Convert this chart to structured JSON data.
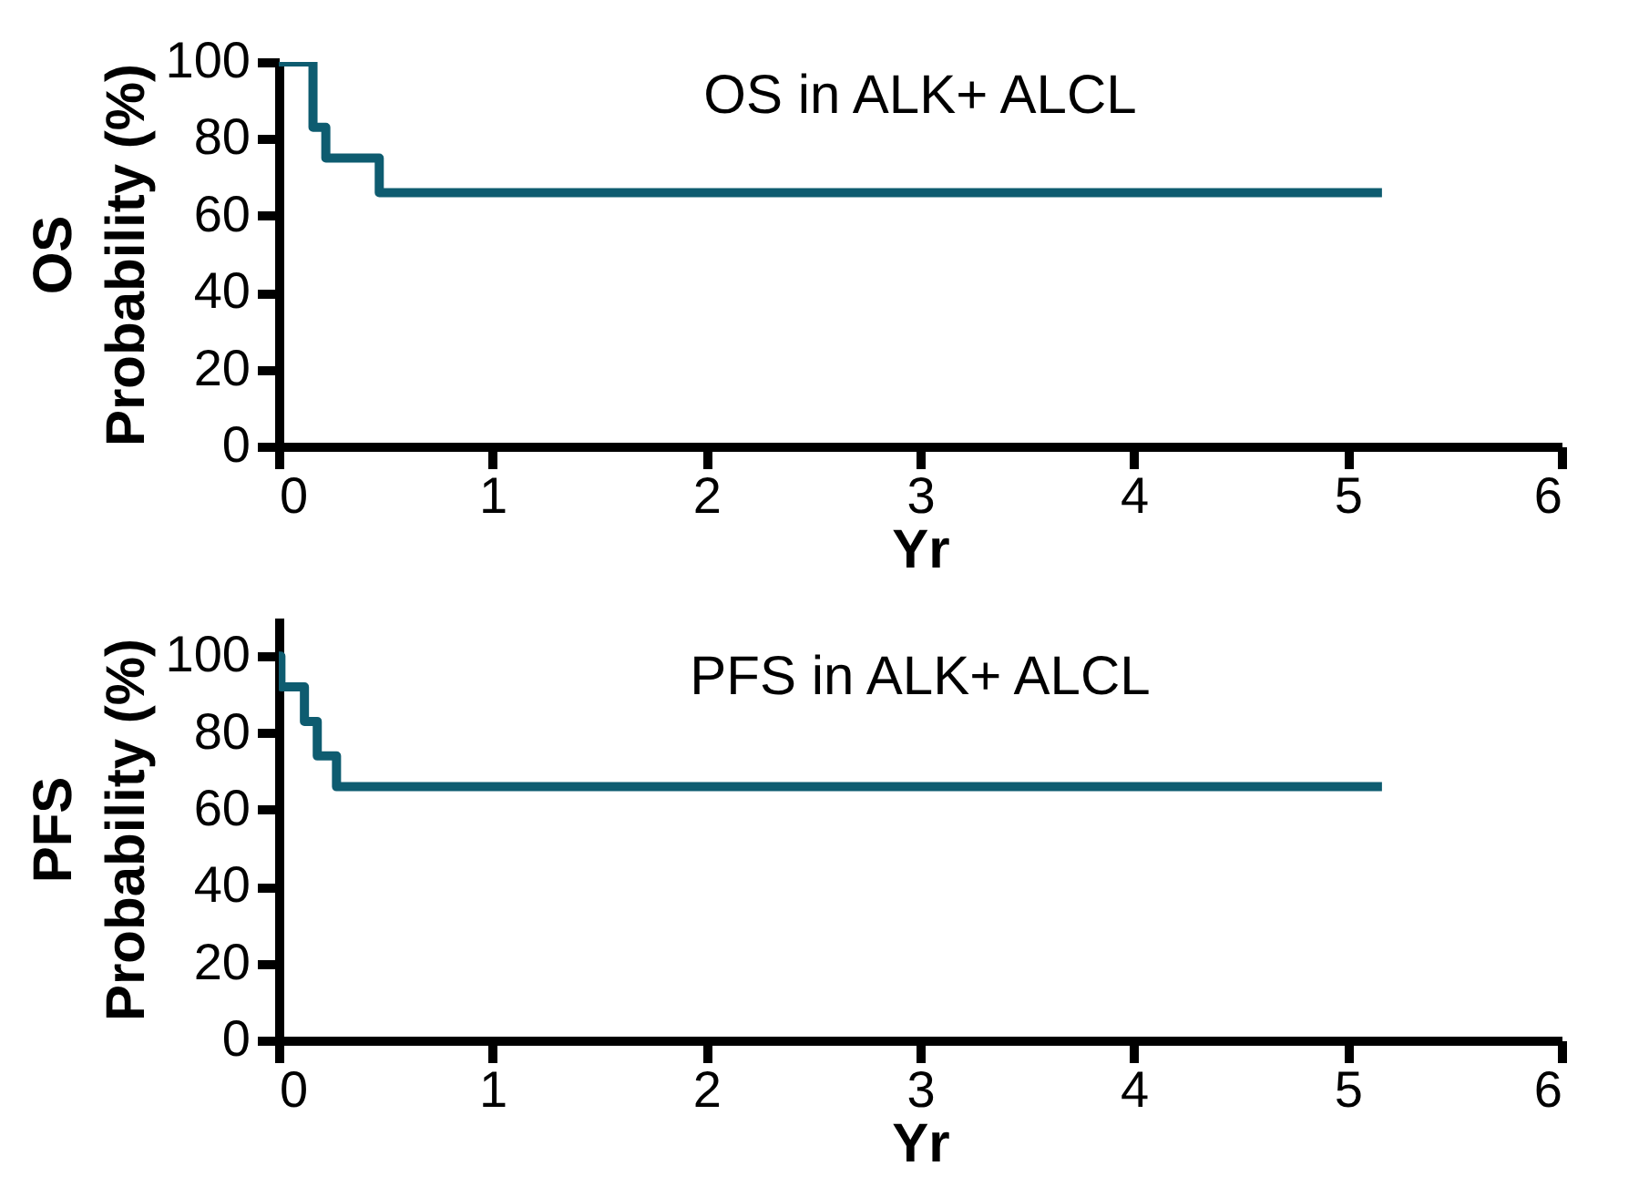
{
  "chart_data": [
    {
      "type": "step",
      "title": "OS in ALK+ ALCL",
      "xlabel": "Yr",
      "ylabel": "Probability (%)",
      "annotations": [
        "OS"
      ],
      "x": [
        0,
        0.16,
        0.22,
        0.47,
        5.16
      ],
      "series": [
        {
          "color": "#0e5c70",
          "values": [
            100,
            83,
            75,
            66,
            66
          ]
        }
      ],
      "xlim": [
        0,
        6
      ],
      "xticks": [
        0,
        1,
        2,
        3,
        4,
        5,
        6
      ],
      "ylim": [
        0,
        100
      ],
      "yticks": [
        0,
        20,
        40,
        60,
        80,
        100
      ],
      "line_style": "solid"
    },
    {
      "type": "step",
      "title": "PFS in ALK+ ALCL",
      "xlabel": "Yr",
      "ylabel": "Probability (%)",
      "annotations": [
        "PFS"
      ],
      "x": [
        0,
        0.01,
        0.12,
        0.18,
        0.27,
        5.16
      ],
      "series": [
        {
          "color": "#0e5c70",
          "values": [
            100,
            92,
            83,
            74,
            66,
            66
          ]
        }
      ],
      "xlim": [
        0,
        6
      ],
      "xticks": [
        0,
        1,
        2,
        3,
        4,
        5,
        6
      ],
      "ylim": [
        0,
        110
      ],
      "yticks": [
        0,
        20,
        40,
        60,
        80,
        100
      ],
      "line_style": "solid"
    }
  ]
}
